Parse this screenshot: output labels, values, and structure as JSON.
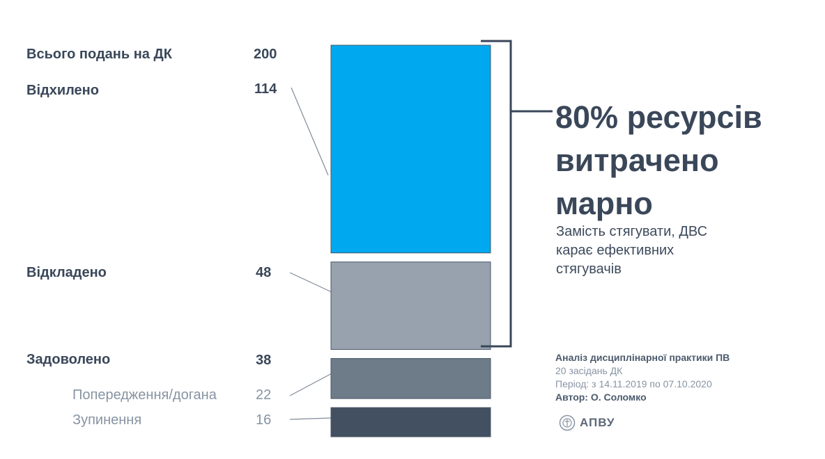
{
  "chart_data": {
    "type": "bar",
    "orientation": "stacked-vertical",
    "total": {
      "label": "Всього подань на ДК",
      "value": 200
    },
    "segments": [
      {
        "label": "Відхилено",
        "value": 114,
        "color": "#00a9ef"
      },
      {
        "label": "Відкладено",
        "value": 48,
        "color": "#97a2ae"
      },
      {
        "label": "Задоволено",
        "value": 38,
        "color": "#6e7c89",
        "breakdown": [
          {
            "label": "Попередження/догана",
            "value": 22,
            "color": "#6e7c89"
          },
          {
            "label": "Зупинення",
            "value": 16,
            "color": "#435061"
          }
        ]
      }
    ]
  },
  "labels": {
    "total": "Всього подань на ДК",
    "total_value": "200",
    "rejected": "Відхилено",
    "rejected_value": "114",
    "postponed": "Відкладено",
    "postponed_value": "48",
    "satisfied": "Задоволено",
    "satisfied_value": "38",
    "warning": "Попередження/догана",
    "warning_value": "22",
    "suspension": "Зупинення",
    "suspension_value": "16"
  },
  "headline": {
    "line1": "80% ресурсів",
    "line2": "витрачено",
    "line3": "марно"
  },
  "subtext": {
    "line1": "Замість стягувати, ДВС",
    "line2": "карає ефективних",
    "line3": "стягувачів"
  },
  "info": {
    "title": "Аналіз дисциплінарної практики ПВ",
    "meetings": "20 засідань ДК",
    "period": "Період: з 14.11.2019 по 07.10.2020",
    "author": "Автор: О. Соломко"
  },
  "logo": {
    "text": "АПВУ",
    "icon": "apvu-emblem-icon"
  },
  "colors": {
    "text": "#3a4759",
    "muted": "#8794a3",
    "accent": "#00a9ef"
  }
}
